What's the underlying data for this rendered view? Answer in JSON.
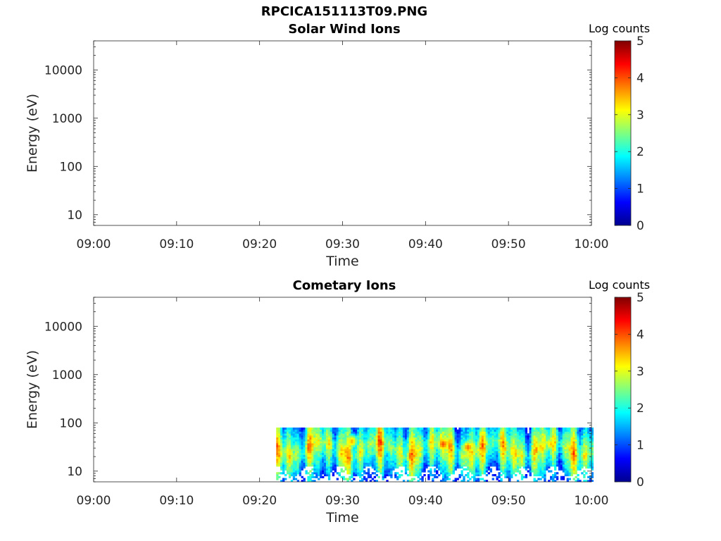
{
  "figure_title": "RPCICA151113T09.PNG",
  "chart_data": [
    {
      "type": "heatmap",
      "title": "Solar Wind Ions",
      "xlabel": "Time",
      "ylabel": "Energy (eV)",
      "x_ticks": [
        "09:00",
        "09:10",
        "09:20",
        "09:30",
        "09:40",
        "09:50",
        "10:00"
      ],
      "y_ticks": [
        "10",
        "100",
        "1000",
        "10000"
      ],
      "y_scale": "log",
      "ylim": [
        6,
        40000
      ],
      "colorbar": {
        "label": "Log counts",
        "ticks": [
          "0",
          "1",
          "2",
          "3",
          "4",
          "5"
        ],
        "range": [
          0,
          5
        ],
        "colormap": "jet"
      },
      "data": "no counts displayed (panel empty)"
    },
    {
      "type": "heatmap",
      "title": "Cometary Ions",
      "xlabel": "Time",
      "ylabel": "Energy (eV)",
      "x_ticks": [
        "09:00",
        "09:10",
        "09:20",
        "09:30",
        "09:40",
        "09:50",
        "10:00"
      ],
      "y_ticks": [
        "10",
        "100",
        "1000",
        "10000"
      ],
      "y_scale": "log",
      "ylim": [
        6,
        40000
      ],
      "colorbar": {
        "label": "Log counts",
        "ticks": [
          "0",
          "1",
          "2",
          "3",
          "4",
          "5"
        ],
        "range": [
          0,
          5
        ],
        "colormap": "jet"
      },
      "data_extent": {
        "time_start": "09:22",
        "time_end": "10:00",
        "energy_min_eV": 6,
        "energy_max_eV": 80
      },
      "peak_regions": [
        {
          "time": "09:31",
          "energy_eV": 40,
          "log_counts": 3.5
        },
        {
          "time": "09:42",
          "energy_eV": 35,
          "log_counts": 4.0
        },
        {
          "time": "09:45",
          "energy_eV": 30,
          "log_counts": 3.8
        },
        {
          "time": "09:55",
          "energy_eV": 35,
          "log_counts": 3.4
        }
      ]
    }
  ]
}
